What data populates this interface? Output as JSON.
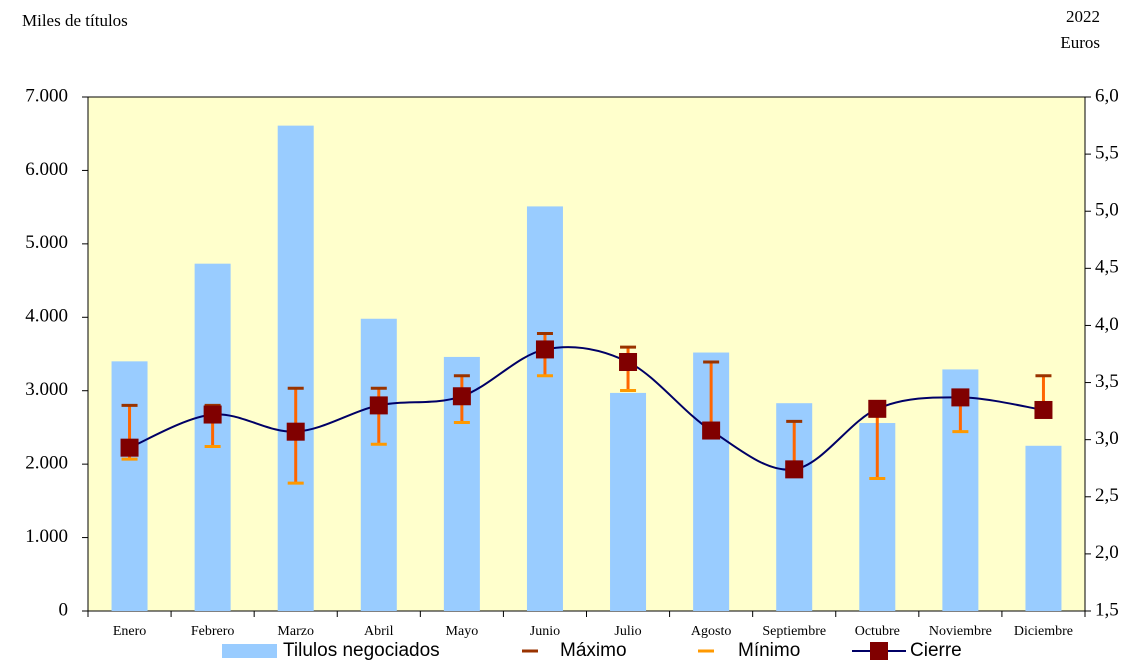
{
  "chart_data": {
    "type": "bar-line",
    "y_label": "Miles de títulos",
    "y2_label_top": "2022",
    "y2_label": "Euros",
    "categories": [
      "Enero",
      "Febrero",
      "Marzo",
      "Abril",
      "Mayo",
      "Junio",
      "Julio",
      "Agosto",
      "Septiembre",
      "Octubre",
      "Noviembre",
      "Diciembre"
    ],
    "series": [
      {
        "name": "Tilulos negociados",
        "color": "#99ccff",
        "values": [
          3400,
          4730,
          6610,
          3980,
          3460,
          5510,
          2970,
          3520,
          2830,
          2560,
          3290,
          2250
        ]
      },
      {
        "name": "Máximo",
        "color": "#993300",
        "axis": "y2",
        "values": [
          3.3,
          3.3,
          3.45,
          3.45,
          3.56,
          3.93,
          3.81,
          3.68,
          3.16,
          3.29,
          3.43,
          3.56
        ]
      },
      {
        "name": "Mínimo",
        "color": "#ff9900",
        "axis": "y2",
        "values": [
          2.83,
          2.94,
          2.62,
          2.96,
          3.15,
          3.56,
          3.43,
          3.04,
          2.69,
          2.66,
          3.07,
          3.22
        ]
      },
      {
        "name": "Cierre",
        "color": "#800000",
        "line_color": "#000066",
        "axis": "y2",
        "values": [
          2.93,
          3.22,
          3.07,
          3.3,
          3.38,
          3.79,
          3.68,
          3.08,
          2.74,
          3.27,
          3.37,
          3.26
        ]
      }
    ],
    "ylim": [
      0,
      7000
    ],
    "yticks": [
      0,
      {
        "value": 1000,
        "label": "1.000"
      },
      {
        "value": 2000,
        "label": "2.000"
      },
      {
        "value": 3000,
        "label": "3.000"
      },
      {
        "value": 4000,
        "label": "4.000"
      },
      {
        "value": 5000,
        "label": "5.000"
      },
      {
        "value": 6000,
        "label": "6.000"
      },
      {
        "value": 7000,
        "label": "7.000"
      }
    ],
    "y2lim": [
      1.5,
      6
    ],
    "y2ticks": [
      {
        "value": 1.5,
        "label": "1,5"
      },
      {
        "value": 2,
        "label": "2,0"
      },
      {
        "value": 2.5,
        "label": "2,5"
      },
      {
        "value": 3,
        "label": "3,0"
      },
      {
        "value": 3.5,
        "label": "3,5"
      },
      {
        "value": 4,
        "label": "4,0"
      },
      {
        "value": 4.5,
        "label": "4,5"
      },
      {
        "value": 5,
        "label": "5,0"
      },
      {
        "value": 5.5,
        "label": "5,5"
      },
      {
        "value": 6,
        "label": "6,0"
      }
    ],
    "plot_background": "#ffffcc",
    "errorbar_color": "#ff6600"
  }
}
